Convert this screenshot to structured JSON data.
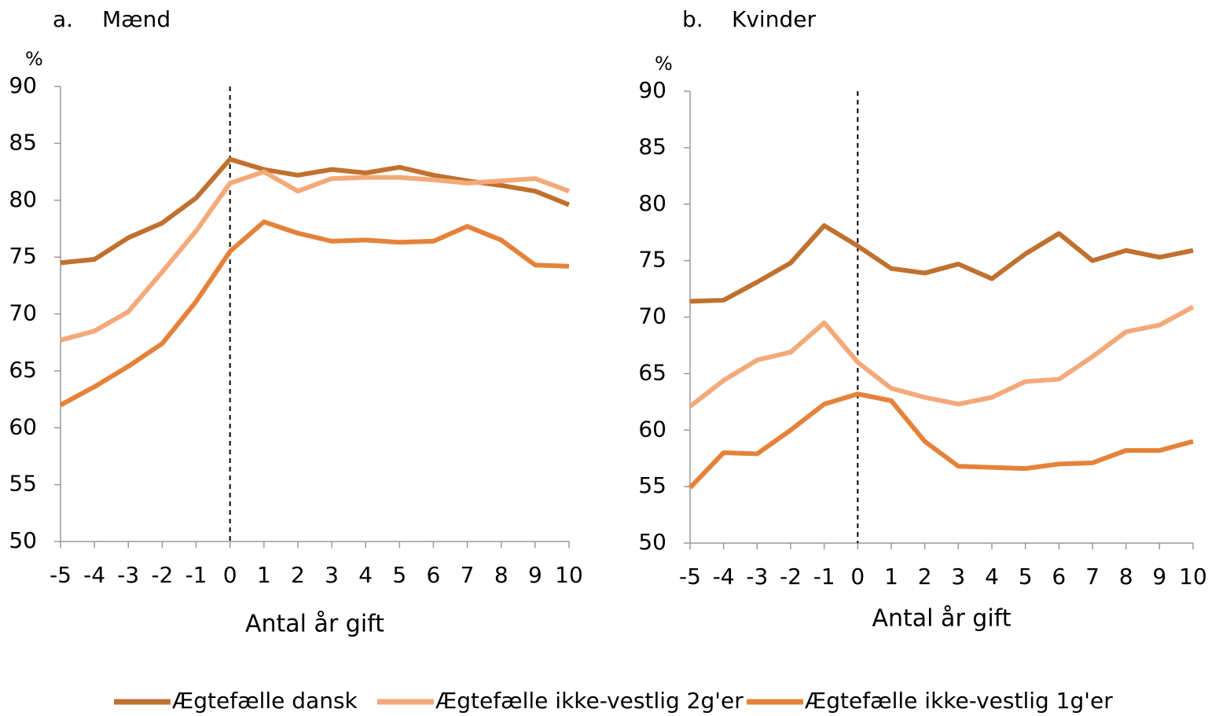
{
  "chart_data": [
    {
      "type": "line",
      "panel": "a.",
      "title": "Mænd",
      "ylabel": "%",
      "xlabel": "Antal år gift",
      "x": [
        -5,
        -4,
        -3,
        -2,
        -1,
        0,
        1,
        2,
        3,
        4,
        5,
        6,
        7,
        8,
        9,
        10
      ],
      "xlim": [
        -5,
        10
      ],
      "xticks": [
        -5,
        -4,
        -3,
        -2,
        -1,
        0,
        1,
        2,
        3,
        4,
        5,
        6,
        7,
        8,
        9,
        10
      ],
      "ylim": [
        50,
        90
      ],
      "yticks": [
        50,
        55,
        60,
        65,
        70,
        75,
        80,
        85,
        90
      ],
      "vline": 0,
      "series": [
        {
          "name": "Ægtefælle dansk",
          "color": "#c0712f",
          "values": [
            74.5,
            74.8,
            76.7,
            78.0,
            80.2,
            83.6,
            82.7,
            82.2,
            82.7,
            82.4,
            82.9,
            82.2,
            81.7,
            81.3,
            80.8,
            79.6
          ]
        },
        {
          "name": "Ægtefælle ikke-vestlig 2g'er",
          "color": "#f4a97a",
          "values": [
            67.7,
            68.5,
            70.2,
            73.7,
            77.3,
            81.5,
            82.5,
            80.8,
            81.9,
            82.0,
            82.0,
            81.8,
            81.5,
            81.7,
            81.9,
            80.8
          ]
        },
        {
          "name": "Ægtefælle ikke-vestlig 1g'er",
          "color": "#e5823a",
          "values": [
            62.0,
            63.6,
            65.4,
            67.4,
            71.1,
            75.5,
            78.1,
            77.1,
            76.4,
            76.5,
            76.3,
            76.4,
            77.7,
            76.5,
            74.3,
            74.2
          ]
        }
      ]
    },
    {
      "type": "line",
      "panel": "b.",
      "title": "Kvinder",
      "ylabel": "%",
      "xlabel": "Antal år gift",
      "x": [
        -5,
        -4,
        -3,
        -2,
        -1,
        0,
        1,
        2,
        3,
        4,
        5,
        6,
        7,
        8,
        9,
        10
      ],
      "xlim": [
        -5,
        10
      ],
      "xticks": [
        -5,
        -4,
        -3,
        -2,
        -1,
        0,
        1,
        2,
        3,
        4,
        5,
        6,
        7,
        8,
        9,
        10
      ],
      "ylim": [
        50,
        90
      ],
      "yticks": [
        50,
        55,
        60,
        65,
        70,
        75,
        80,
        85,
        90
      ],
      "vline": 0,
      "series": [
        {
          "color": "#c0712f",
          "values": [
            71.4,
            71.5,
            73.1,
            74.8,
            78.1,
            76.3,
            74.3,
            73.9,
            74.7,
            73.4,
            75.6,
            77.4,
            75.0,
            75.9,
            75.3,
            75.9
          ]
        },
        {
          "color": "#f4a97a",
          "values": [
            62.1,
            64.4,
            66.2,
            66.9,
            69.5,
            66.0,
            63.7,
            62.9,
            62.3,
            62.9,
            64.3,
            64.5,
            66.5,
            68.7,
            69.3,
            70.9
          ]
        },
        {
          "color": "#e5823a",
          "values": [
            54.9,
            58.0,
            57.9,
            60.0,
            62.3,
            63.2,
            62.6,
            59.0,
            56.8,
            56.7,
            56.6,
            57.0,
            57.1,
            58.2,
            58.2,
            59.0
          ]
        }
      ]
    }
  ]
}
